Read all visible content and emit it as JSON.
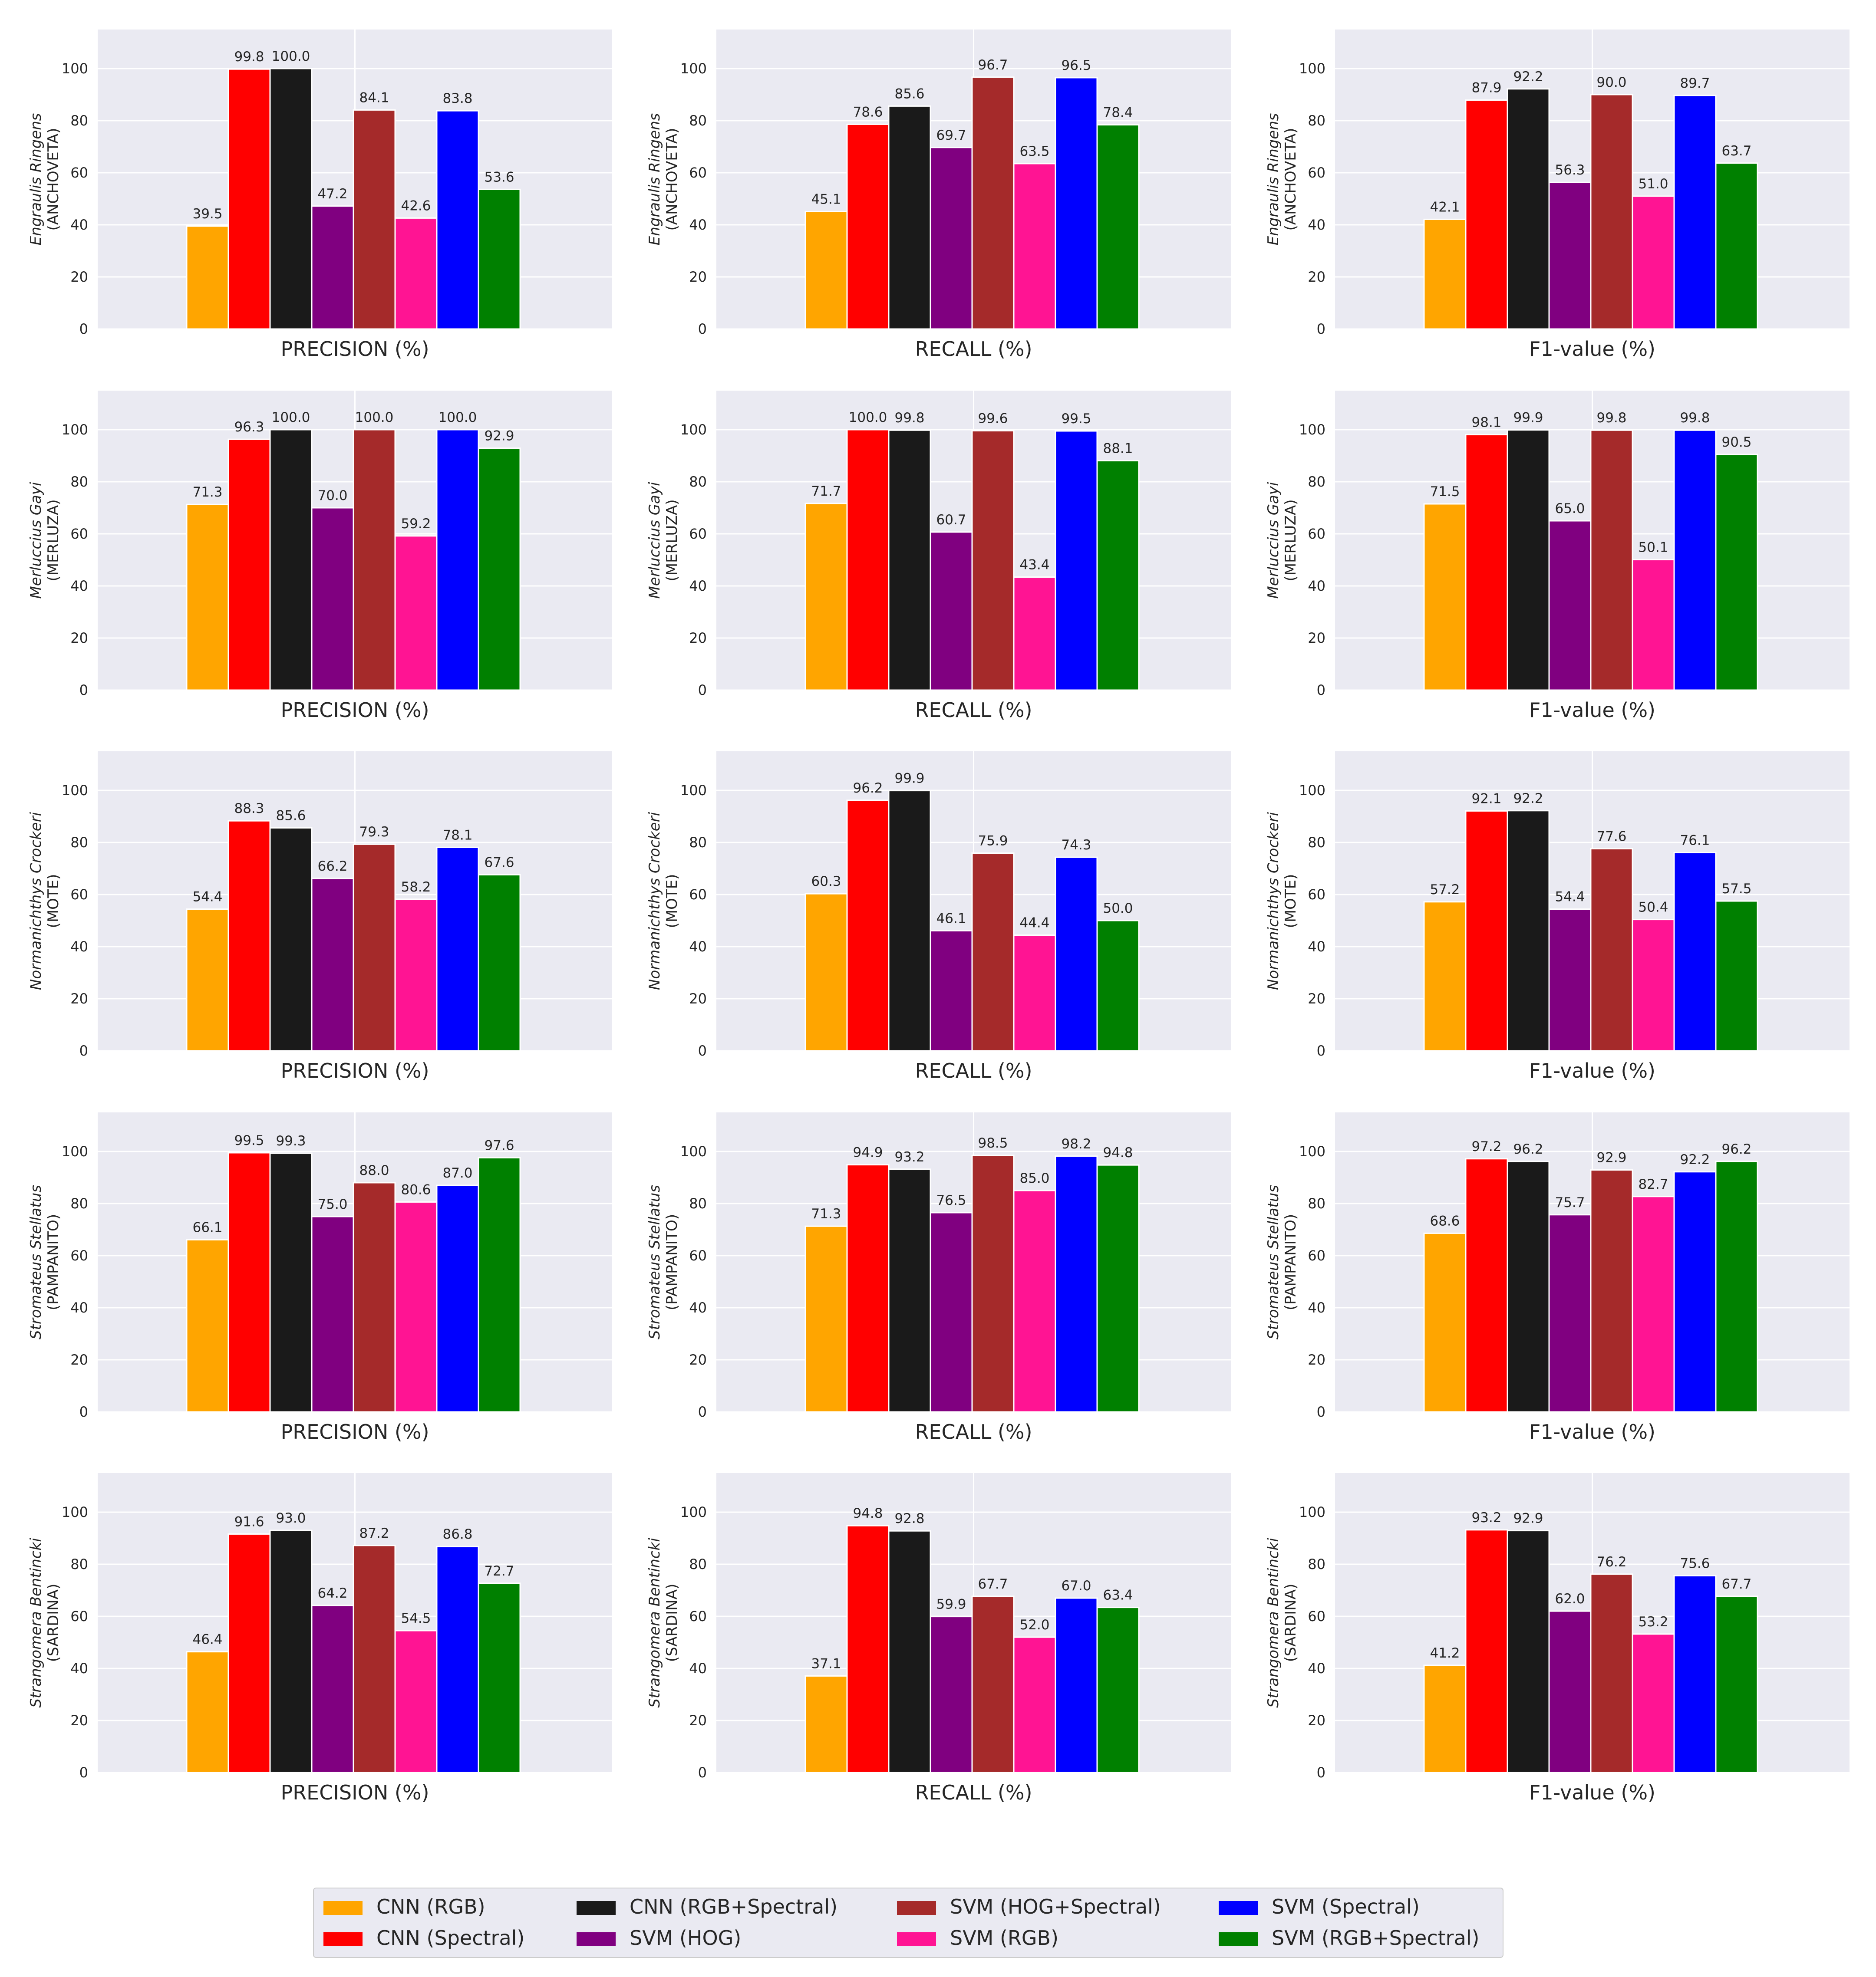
{
  "figure": {
    "series": [
      {
        "name": "CNN (RGB)",
        "color": "#FFA500"
      },
      {
        "name": "CNN (Spectral)",
        "color": "#FF0000"
      },
      {
        "name": "CNN (RGB+Spectral)",
        "color": "#1A1A1A"
      },
      {
        "name": "SVM (HOG)",
        "color": "#800080"
      },
      {
        "name": "SVM (HOG+Spectral)",
        "color": "#A52A2A"
      },
      {
        "name": "SVM (RGB)",
        "color": "#FF1493"
      },
      {
        "name": "SVM (Spectral)",
        "color": "#0000FF"
      },
      {
        "name": "SVM (RGB+Spectral)",
        "color": "#008000"
      }
    ],
    "legend_placement": "bottom-center",
    "legend_columns": 4,
    "background_color": "#EAEAF2",
    "grid": true
  },
  "chart_data": [
    {
      "type": "bar",
      "row": 0,
      "col": 0,
      "ylabel_species": "Engraulis Ringens",
      "ylabel_common": "(ANCHOVETA)",
      "xlabel": "PRECISION (%)",
      "ylim": [
        0,
        115
      ],
      "yticks": [
        0,
        20,
        40,
        60,
        80,
        100
      ],
      "values": [
        39.5,
        99.8,
        100.0,
        47.2,
        84.1,
        42.6,
        83.8,
        53.6
      ],
      "labels": [
        "39.5",
        "99.8",
        "100.0",
        "47.2",
        "84.1",
        "42.6",
        "83.8",
        "53.6"
      ]
    },
    {
      "type": "bar",
      "row": 0,
      "col": 1,
      "ylabel_species": "Engraulis Ringens",
      "ylabel_common": "(ANCHOVETA)",
      "xlabel": "RECALL (%)",
      "ylim": [
        0,
        115
      ],
      "yticks": [
        0,
        20,
        40,
        60,
        80,
        100
      ],
      "values": [
        45.1,
        78.6,
        85.6,
        69.7,
        96.7,
        63.5,
        96.5,
        78.4
      ],
      "labels": [
        "45.1",
        "78.6",
        "85.6",
        "69.7",
        "96.7",
        "63.5",
        "96.5",
        "78.4"
      ]
    },
    {
      "type": "bar",
      "row": 0,
      "col": 2,
      "ylabel_species": "Engraulis Ringens",
      "ylabel_common": "(ANCHOVETA)",
      "xlabel": "F1-value (%)",
      "ylim": [
        0,
        115
      ],
      "yticks": [
        0,
        20,
        40,
        60,
        80,
        100
      ],
      "values": [
        42.1,
        87.9,
        92.2,
        56.3,
        90.0,
        51.0,
        89.7,
        63.7
      ],
      "labels": [
        "42.1",
        "87.9",
        "92.2",
        "56.3",
        "90.0",
        "51.0",
        "89.7",
        "63.7"
      ]
    },
    {
      "type": "bar",
      "row": 1,
      "col": 0,
      "ylabel_species": "Merluccius Gayi",
      "ylabel_common": "(MERLUZA)",
      "xlabel": "PRECISION (%)",
      "ylim": [
        0,
        115
      ],
      "yticks": [
        0,
        20,
        40,
        60,
        80,
        100
      ],
      "values": [
        71.3,
        96.3,
        100.0,
        70.0,
        100.0,
        59.2,
        100.0,
        92.9
      ],
      "labels": [
        "71.3",
        "96.3",
        "100.0",
        "70.0",
        "100.0",
        "59.2",
        "100.0",
        "92.9"
      ]
    },
    {
      "type": "bar",
      "row": 1,
      "col": 1,
      "ylabel_species": "Merluccius Gayi",
      "ylabel_common": "(MERLUZA)",
      "xlabel": "RECALL (%)",
      "ylim": [
        0,
        115
      ],
      "yticks": [
        0,
        20,
        40,
        60,
        80,
        100
      ],
      "values": [
        71.7,
        100.0,
        99.8,
        60.7,
        99.6,
        43.4,
        99.5,
        88.1
      ],
      "labels": [
        "71.7",
        "100.0",
        "99.8",
        "60.7",
        "99.6",
        "43.4",
        "99.5",
        "88.1"
      ]
    },
    {
      "type": "bar",
      "row": 1,
      "col": 2,
      "ylabel_species": "Merluccius Gayi",
      "ylabel_common": "(MERLUZA)",
      "xlabel": "F1-value (%)",
      "ylim": [
        0,
        115
      ],
      "yticks": [
        0,
        20,
        40,
        60,
        80,
        100
      ],
      "values": [
        71.5,
        98.1,
        99.9,
        65.0,
        99.8,
        50.1,
        99.8,
        90.5
      ],
      "labels": [
        "71.5",
        "98.1",
        "99.9",
        "65.0",
        "99.8",
        "50.1",
        "99.8",
        "90.5"
      ]
    },
    {
      "type": "bar",
      "row": 2,
      "col": 0,
      "ylabel_species": "Normanichthys Crockeri",
      "ylabel_common": "(MOTE)",
      "xlabel": "PRECISION (%)",
      "ylim": [
        0,
        115
      ],
      "yticks": [
        0,
        20,
        40,
        60,
        80,
        100
      ],
      "values": [
        54.4,
        88.3,
        85.6,
        66.2,
        79.3,
        58.2,
        78.1,
        67.6
      ],
      "labels": [
        "54.4",
        "88.3",
        "85.6",
        "66.2",
        "79.3",
        "58.2",
        "78.1",
        "67.6"
      ]
    },
    {
      "type": "bar",
      "row": 2,
      "col": 1,
      "ylabel_species": "Normanichthys Crockeri",
      "ylabel_common": "(MOTE)",
      "xlabel": "RECALL (%)",
      "ylim": [
        0,
        115
      ],
      "yticks": [
        0,
        20,
        40,
        60,
        80,
        100
      ],
      "values": [
        60.3,
        96.2,
        99.9,
        46.1,
        75.9,
        44.4,
        74.3,
        50.0
      ],
      "labels": [
        "60.3",
        "96.2",
        "99.9",
        "46.1",
        "75.9",
        "44.4",
        "74.3",
        "50.0"
      ]
    },
    {
      "type": "bar",
      "row": 2,
      "col": 2,
      "ylabel_species": "Normanichthys Crockeri",
      "ylabel_common": "(MOTE)",
      "xlabel": "F1-value (%)",
      "ylim": [
        0,
        115
      ],
      "yticks": [
        0,
        20,
        40,
        60,
        80,
        100
      ],
      "values": [
        57.2,
        92.1,
        92.2,
        54.4,
        77.6,
        50.4,
        76.1,
        57.5
      ],
      "labels": [
        "57.2",
        "92.1",
        "92.2",
        "54.4",
        "77.6",
        "50.4",
        "76.1",
        "57.5"
      ]
    },
    {
      "type": "bar",
      "row": 3,
      "col": 0,
      "ylabel_species": "Stromateus Stellatus",
      "ylabel_common": "(PAMPANITO)",
      "xlabel": "PRECISION (%)",
      "ylim": [
        0,
        115
      ],
      "yticks": [
        0,
        20,
        40,
        60,
        80,
        100
      ],
      "values": [
        66.1,
        99.5,
        99.3,
        75.0,
        88.0,
        80.6,
        87.0,
        97.6
      ],
      "labels": [
        "66.1",
        "99.5",
        "99.3",
        "75.0",
        "88.0",
        "80.6",
        "87.0",
        "97.6"
      ]
    },
    {
      "type": "bar",
      "row": 3,
      "col": 1,
      "ylabel_species": "Stromateus Stellatus",
      "ylabel_common": "(PAMPANITO)",
      "xlabel": "RECALL (%)",
      "ylim": [
        0,
        115
      ],
      "yticks": [
        0,
        20,
        40,
        60,
        80,
        100
      ],
      "values": [
        71.3,
        94.9,
        93.2,
        76.5,
        98.5,
        85.0,
        98.2,
        94.8
      ],
      "labels": [
        "71.3",
        "94.9",
        "93.2",
        "76.5",
        "98.5",
        "85.0",
        "98.2",
        "94.8"
      ]
    },
    {
      "type": "bar",
      "row": 3,
      "col": 2,
      "ylabel_species": "Stromateus Stellatus",
      "ylabel_common": "(PAMPANITO)",
      "xlabel": "F1-value (%)",
      "ylim": [
        0,
        115
      ],
      "yticks": [
        0,
        20,
        40,
        60,
        80,
        100
      ],
      "values": [
        68.6,
        97.2,
        96.2,
        75.7,
        92.9,
        82.7,
        92.2,
        96.2
      ],
      "labels": [
        "68.6",
        "97.2",
        "96.2",
        "75.7",
        "92.9",
        "82.7",
        "92.2",
        "96.2"
      ]
    },
    {
      "type": "bar",
      "row": 4,
      "col": 0,
      "ylabel_species": "Strangomera Bentincki",
      "ylabel_common": "(SARDINA)",
      "xlabel": "PRECISION (%)",
      "ylim": [
        0,
        115
      ],
      "yticks": [
        0,
        20,
        40,
        60,
        80,
        100
      ],
      "values": [
        46.4,
        91.6,
        93.0,
        64.2,
        87.2,
        54.5,
        86.8,
        72.7
      ],
      "labels": [
        "46.4",
        "91.6",
        "93.0",
        "64.2",
        "87.2",
        "54.5",
        "86.8",
        "72.7"
      ]
    },
    {
      "type": "bar",
      "row": 4,
      "col": 1,
      "ylabel_species": "Strangomera Bentincki",
      "ylabel_common": "(SARDINA)",
      "xlabel": "RECALL (%)",
      "ylim": [
        0,
        115
      ],
      "yticks": [
        0,
        20,
        40,
        60,
        80,
        100
      ],
      "values": [
        37.1,
        94.8,
        92.8,
        59.9,
        67.7,
        52.0,
        67.0,
        63.4
      ],
      "labels": [
        "37.1",
        "94.8",
        "92.8",
        "59.9",
        "67.7",
        "52.0",
        "67.0",
        "63.4"
      ]
    },
    {
      "type": "bar",
      "row": 4,
      "col": 2,
      "ylabel_species": "Strangomera Bentincki",
      "ylabel_common": "(SARDINA)",
      "xlabel": "F1-value (%)",
      "ylim": [
        0,
        115
      ],
      "yticks": [
        0,
        20,
        40,
        60,
        80,
        100
      ],
      "values": [
        41.2,
        93.2,
        92.9,
        62.0,
        76.2,
        53.2,
        75.6,
        67.7
      ],
      "labels": [
        "41.2",
        "93.2",
        "92.9",
        "62.0",
        "76.2",
        "53.2",
        "75.6",
        "67.7"
      ]
    }
  ]
}
